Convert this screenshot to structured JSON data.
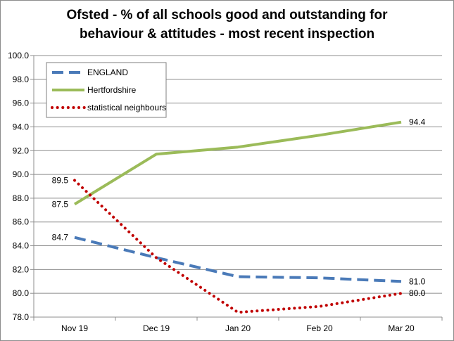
{
  "chart_data": {
    "type": "line",
    "title_line1": "Ofsted - % of all schools good and outstanding for",
    "title_line2": "behaviour & attitudes - most recent inspection",
    "categories": [
      "Nov 19",
      "Dec 19",
      "Jan 20",
      "Feb 20",
      "Mar 20"
    ],
    "ylim": [
      78.0,
      100.0
    ],
    "yticks": [
      "78.0",
      "80.0",
      "82.0",
      "84.0",
      "86.0",
      "88.0",
      "90.0",
      "92.0",
      "94.0",
      "96.0",
      "98.0",
      "100.0"
    ],
    "grid": true,
    "legend_position": "top-left",
    "series": [
      {
        "name": "ENGLAND",
        "values": [
          84.7,
          83.0,
          81.4,
          81.3,
          81.0
        ],
        "color": "#4a7ab8",
        "style": "dashed",
        "labels": {
          "first": "84.7",
          "last": "81.0"
        }
      },
      {
        "name": "Hertfordshire",
        "values": [
          87.5,
          91.7,
          92.3,
          93.3,
          94.4
        ],
        "color": "#9bbb59",
        "style": "solid",
        "labels": {
          "first": "87.5",
          "last": "94.4"
        }
      },
      {
        "name": "statistical neighbours",
        "values": [
          89.5,
          83.0,
          78.4,
          78.9,
          80.0
        ],
        "color": "#c00000",
        "style": "dotted",
        "labels": {
          "first": "89.5",
          "last": "80.0"
        }
      }
    ]
  }
}
